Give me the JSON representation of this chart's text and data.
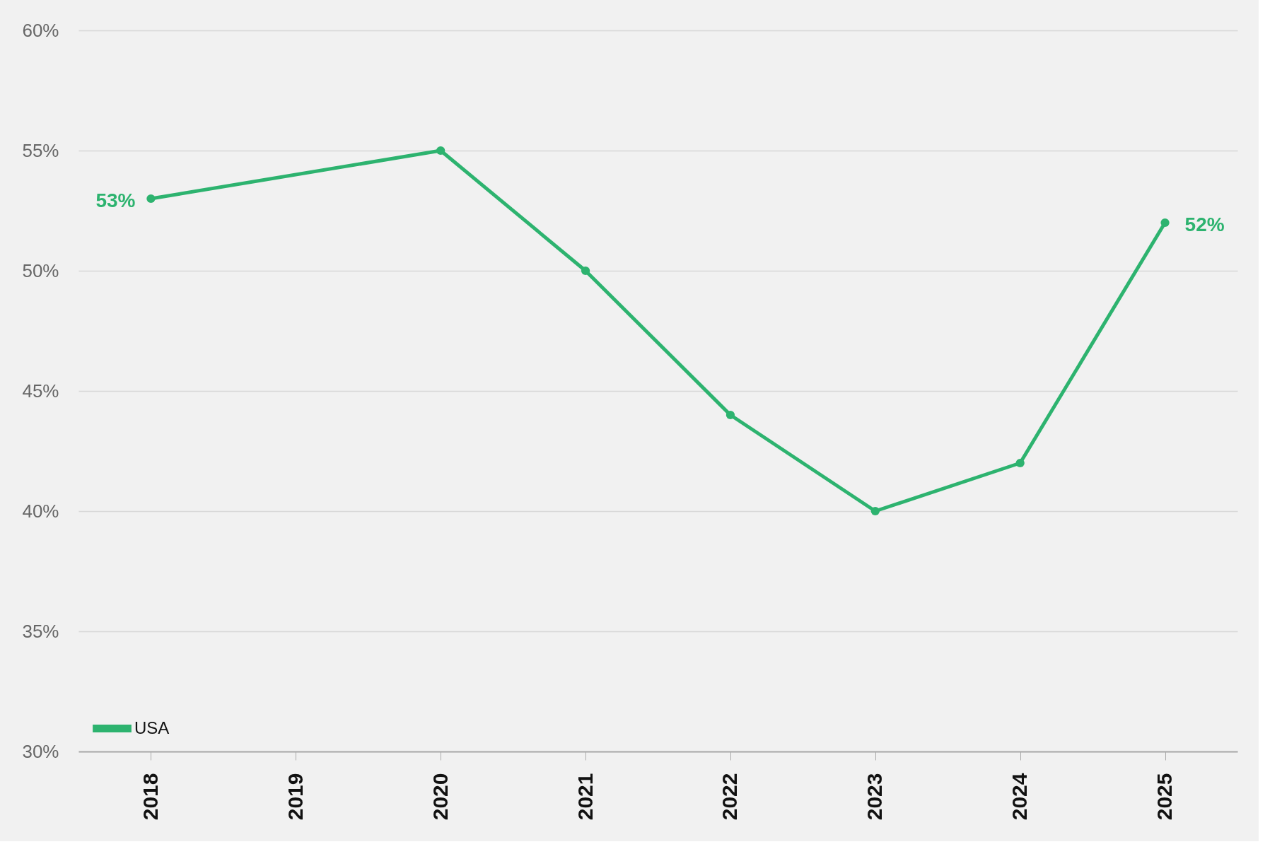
{
  "chart_data": {
    "type": "line",
    "categories": [
      "2018",
      "2019",
      "2020",
      "2021",
      "2022",
      "2023",
      "2024",
      "2025"
    ],
    "series": [
      {
        "name": "USA",
        "color": "#2db36f",
        "values": [
          53,
          null,
          55,
          50,
          44,
          40,
          42,
          52
        ],
        "value_labels": [
          "53%",
          null,
          null,
          null,
          null,
          null,
          null,
          "52%"
        ]
      }
    ],
    "ylim": [
      30,
      60
    ],
    "yticks": [
      {
        "value": 30,
        "label": "30%"
      },
      {
        "value": 35,
        "label": "35%"
      },
      {
        "value": 40,
        "label": "40%"
      },
      {
        "value": 45,
        "label": "45%"
      },
      {
        "value": 50,
        "label": "50%"
      },
      {
        "value": 55,
        "label": "55%"
      },
      {
        "value": 60,
        "label": "60%"
      }
    ],
    "grid": "y",
    "legend": "bottom left",
    "marker": "circle",
    "line_style": "solid"
  }
}
